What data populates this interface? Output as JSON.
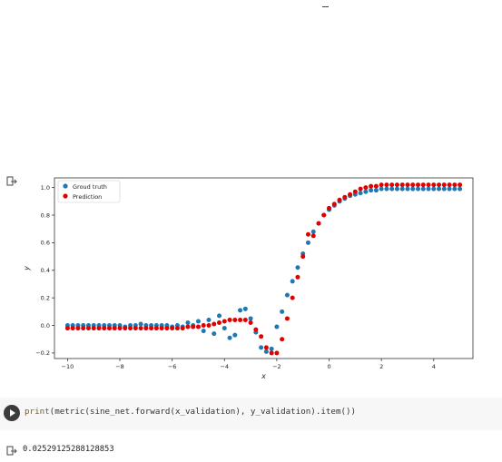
{
  "notebook": {
    "code_cell": {
      "code_prefix": "print",
      "code_rest": "(metric(sine_net.forward(x_validation), y_validation).item())"
    },
    "output_text": "0.02529125288128853"
  },
  "colors": {
    "ground_truth": "#1f77b4",
    "prediction": "#e00000"
  },
  "chart_data": {
    "type": "scatter",
    "title": "",
    "xlabel": "x",
    "ylabel": "y",
    "xlim": [
      -10.5,
      5.5
    ],
    "ylim": [
      -0.24,
      1.07
    ],
    "xticks": [
      -10,
      -8,
      -6,
      -4,
      -2,
      0,
      2,
      4
    ],
    "yticks": [
      -0.2,
      0.0,
      0.2,
      0.4,
      0.6,
      0.8,
      1.0
    ],
    "xtick_labels": [
      "−10",
      "−8",
      "−6",
      "−4",
      "−2",
      "0",
      "2",
      "4"
    ],
    "ytick_labels": [
      "−0.2",
      "0.0",
      "0.2",
      "0.4",
      "0.6",
      "0.8",
      "1.0"
    ],
    "legend_position": "top-left",
    "grid": false,
    "series": [
      {
        "name": "Groud truth",
        "x": [
          -10.0,
          -9.8,
          -9.6,
          -9.4,
          -9.2,
          -9.0,
          -8.8,
          -8.6,
          -8.4,
          -8.2,
          -8.0,
          -7.8,
          -7.6,
          -7.4,
          -7.2,
          -7.0,
          -6.8,
          -6.6,
          -6.4,
          -6.2,
          -6.0,
          -5.8,
          -5.6,
          -5.4,
          -5.2,
          -5.0,
          -4.8,
          -4.6,
          -4.4,
          -4.2,
          -4.0,
          -3.8,
          -3.6,
          -3.4,
          -3.2,
          -3.0,
          -2.8,
          -2.6,
          -2.4,
          -2.2,
          -2.0,
          -1.8,
          -1.6,
          -1.4,
          -1.2,
          -1.0,
          -0.8,
          -0.6,
          -0.4,
          -0.2,
          0.0,
          0.2,
          0.4,
          0.6,
          0.8,
          1.0,
          1.2,
          1.4,
          1.6,
          1.8,
          2.0,
          2.2,
          2.4,
          2.6,
          2.8,
          3.0,
          3.2,
          3.4,
          3.6,
          3.8,
          4.0,
          4.2,
          4.4,
          4.6,
          4.8,
          5.0
        ],
        "y": [
          0.0,
          0.0,
          0.0,
          0.0,
          0.0,
          0.0,
          0.0,
          0.0,
          0.0,
          0.0,
          0.0,
          -0.01,
          0.0,
          0.0,
          0.01,
          0.0,
          0.0,
          0.0,
          0.0,
          0.0,
          -0.01,
          0.0,
          -0.01,
          0.02,
          0.0,
          0.03,
          -0.04,
          0.04,
          -0.06,
          0.07,
          -0.02,
          -0.09,
          -0.07,
          0.11,
          0.12,
          0.05,
          -0.05,
          -0.16,
          -0.19,
          -0.17,
          -0.01,
          0.1,
          0.22,
          0.32,
          0.42,
          0.52,
          0.6,
          0.68,
          0.74,
          0.8,
          0.84,
          0.87,
          0.9,
          0.92,
          0.94,
          0.95,
          0.96,
          0.97,
          0.98,
          0.98,
          0.99,
          0.99,
          0.99,
          0.99,
          0.99,
          0.99,
          0.99,
          0.99,
          0.99,
          0.99,
          0.99,
          0.99,
          0.99,
          0.99,
          0.99,
          0.99
        ]
      },
      {
        "name": "Prediction",
        "x": [
          -10.0,
          -9.8,
          -9.6,
          -9.4,
          -9.2,
          -9.0,
          -8.8,
          -8.6,
          -8.4,
          -8.2,
          -8.0,
          -7.8,
          -7.6,
          -7.4,
          -7.2,
          -7.0,
          -6.8,
          -6.6,
          -6.4,
          -6.2,
          -6.0,
          -5.8,
          -5.6,
          -5.4,
          -5.2,
          -5.0,
          -4.8,
          -4.6,
          -4.4,
          -4.2,
          -4.0,
          -3.8,
          -3.6,
          -3.4,
          -3.2,
          -3.0,
          -2.8,
          -2.6,
          -2.4,
          -2.2,
          -2.0,
          -1.8,
          -1.6,
          -1.4,
          -1.2,
          -1.0,
          -0.8,
          -0.6,
          -0.4,
          -0.2,
          0.0,
          0.2,
          0.4,
          0.6,
          0.8,
          1.0,
          1.2,
          1.4,
          1.6,
          1.8,
          2.0,
          2.2,
          2.4,
          2.6,
          2.8,
          3.0,
          3.2,
          3.4,
          3.6,
          3.8,
          4.0,
          4.2,
          4.4,
          4.6,
          4.8,
          5.0
        ],
        "y": [
          -0.02,
          -0.02,
          -0.02,
          -0.02,
          -0.02,
          -0.02,
          -0.02,
          -0.02,
          -0.02,
          -0.02,
          -0.02,
          -0.02,
          -0.02,
          -0.02,
          -0.02,
          -0.02,
          -0.02,
          -0.02,
          -0.02,
          -0.02,
          -0.02,
          -0.02,
          -0.02,
          -0.01,
          -0.01,
          -0.01,
          0.0,
          0.0,
          0.01,
          0.02,
          0.03,
          0.04,
          0.04,
          0.04,
          0.04,
          0.02,
          -0.03,
          -0.08,
          -0.16,
          -0.2,
          -0.2,
          -0.1,
          0.05,
          0.2,
          0.35,
          0.5,
          0.66,
          0.65,
          0.74,
          0.8,
          0.85,
          0.88,
          0.91,
          0.93,
          0.95,
          0.97,
          0.99,
          1.0,
          1.01,
          1.01,
          1.02,
          1.02,
          1.02,
          1.02,
          1.02,
          1.02,
          1.02,
          1.02,
          1.02,
          1.02,
          1.02,
          1.02,
          1.02,
          1.02,
          1.02,
          1.02
        ]
      }
    ]
  }
}
